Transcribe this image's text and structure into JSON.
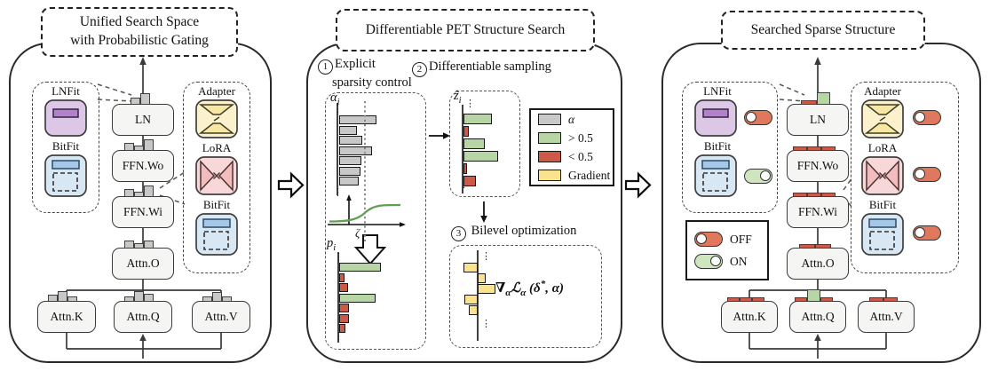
{
  "colors": {
    "panel_border": "#2b2b2b",
    "block_fill": "#f5f5f3",
    "gate_gray": "#c8c8c8",
    "gray_bar": "#c8c8c8",
    "green_bar": "#b8d6a5",
    "red_bar": "#cd5948",
    "yellow_bar": "#fbe38e",
    "sigmoid_green": "#5fa050",
    "lnfit_bg": "#dcc8e6",
    "lnfit_bar": "#b083c8",
    "bitfit_bg": "#d8e7f4",
    "bitfit_bar": "#a6c7e7",
    "adapter_bg": "#fbf2cd",
    "adapter_shape": "#f7e7a3",
    "lora_bg": "#f7d7d7",
    "lora_shape": "#f3bdbd",
    "toggle_off": "#e0785e",
    "toggle_on": "#cfe5bd"
  },
  "glyphs": {
    "vdots": "⋮"
  },
  "left_panel": {
    "title_line1": "Unified Search Space",
    "title_line2": "with Probabilistic Gating"
  },
  "middle_panel": {
    "title": "Differentiable PET Structure Search",
    "steps": [
      {
        "num": "1",
        "line1": "Explicit",
        "line2": "sparsity control"
      },
      {
        "num": "2",
        "line1": "Differentiable sampling"
      },
      {
        "num": "3",
        "line1": "Bilevel optimization"
      }
    ],
    "zeta": "ζ",
    "legend": [
      {
        "label": "α",
        "color_key": "gray_bar"
      },
      {
        "label": "> 0.5",
        "color_key": "green_bar"
      },
      {
        "label": "< 0.5",
        "color_key": "red_bar"
      },
      {
        "label": "Gradient",
        "color_key": "yellow_bar"
      }
    ],
    "formula_parts": [
      {
        "t": "∇"
      },
      {
        "t": "α",
        "sub": true
      },
      {
        "t": "ℒ"
      },
      {
        "t": "α",
        "sub": true
      },
      {
        "t": " (δ"
      },
      {
        "t": "*",
        "sup": true
      },
      {
        "t": ", α)"
      }
    ]
  },
  "right_panel": {
    "title": "Searched Sparse Structure",
    "legend_off": "OFF",
    "legend_on": "ON",
    "toggles": {
      "lnfit": "off",
      "bitfit_left": "on",
      "adapter": "off",
      "lora": "off",
      "bitfit_right": "off"
    }
  },
  "arch": {
    "blocks": [
      "LN",
      "FFN.Wo",
      "FFN.Wi",
      "Attn.O"
    ],
    "attn": [
      "Attn.K",
      "Attn.Q",
      "Attn.V"
    ],
    "modules_left": [
      {
        "label": "LNFit",
        "type": "lnfit"
      },
      {
        "label": "BitFit",
        "type": "bitfit"
      }
    ],
    "modules_right": [
      {
        "label": "Adapter",
        "type": "adapter"
      },
      {
        "label": "LoRA",
        "type": "lora"
      },
      {
        "label": "BitFit",
        "type": "bitfit"
      }
    ]
  },
  "gates": {
    "left": {
      "ln": [
        {
          "h": 8
        },
        {
          "h": 13
        }
      ],
      "ffn_wo": [
        {
          "h": 9
        },
        {
          "h": 6
        },
        {
          "h": 13
        }
      ],
      "ffn_wi": [
        {
          "h": 9
        },
        {
          "h": 6
        },
        {
          "h": 13
        }
      ],
      "attn_o": [
        {
          "h": 9
        },
        {
          "h": 6
        },
        {
          "h": 9
        }
      ],
      "attn_k": [
        {
          "h": 8
        },
        {
          "h": 12
        },
        {
          "h": 6
        }
      ],
      "attn_q": [
        {
          "h": 6
        },
        {
          "h": 12
        },
        {
          "h": 9
        }
      ],
      "attn_v": [
        {
          "h": 6
        },
        {
          "h": 11
        },
        {
          "h": 6
        }
      ]
    },
    "right": {
      "ln": [
        {
          "h": 5,
          "w": 18,
          "c": "red"
        },
        {
          "h": 14,
          "w": 15,
          "c": "green"
        }
      ],
      "ffn_wo": [
        {
          "h": 5,
          "w": 16,
          "c": "red"
        },
        {
          "h": 5,
          "w": 16,
          "c": "red"
        },
        {
          "h": 5,
          "w": 16,
          "c": "red"
        }
      ],
      "ffn_wi": [
        {
          "h": 5,
          "w": 16,
          "c": "red"
        },
        {
          "h": 5,
          "w": 16,
          "c": "red"
        },
        {
          "h": 5,
          "w": 16,
          "c": "red"
        }
      ],
      "attn_o": [
        {
          "h": 5,
          "w": 18,
          "c": "red"
        },
        {
          "h": 5,
          "w": 18,
          "c": "red"
        }
      ],
      "attn_k": [
        {
          "h": 5,
          "w": 14,
          "c": "red"
        },
        {
          "h": 5,
          "w": 14,
          "c": "red"
        },
        {
          "h": 5,
          "w": 14,
          "c": "red"
        }
      ],
      "attn_q": [
        {
          "h": 5,
          "w": 14,
          "c": "red"
        },
        {
          "h": 14,
          "w": 15,
          "c": "green"
        },
        {
          "h": 5,
          "w": 14,
          "c": "red"
        }
      ],
      "attn_v": [
        {
          "h": 5,
          "w": 16,
          "c": "red"
        },
        {
          "h": 5,
          "w": 16,
          "c": "red"
        }
      ]
    }
  },
  "histograms": {
    "alpha": {
      "label_base": "α",
      "label_sub": "i",
      "bars": [
        {
          "v": 42,
          "c": "gray"
        },
        {
          "v": 20,
          "c": "gray"
        },
        {
          "v": 26,
          "c": "gray"
        },
        {
          "v": 37,
          "c": "gray"
        },
        {
          "v": 25,
          "c": "gray"
        },
        {
          "v": 24,
          "c": "gray"
        },
        {
          "v": 22,
          "c": "gray"
        }
      ]
    },
    "z": {
      "label_base": "ẑ",
      "label_sub": "i",
      "bars": [
        {
          "v": 32,
          "c": "green"
        },
        {
          "v": 6,
          "c": "red"
        },
        {
          "v": 24,
          "c": "green"
        },
        {
          "v": 39,
          "c": "green"
        },
        {
          "v": 4,
          "c": "red"
        },
        {
          "v": 14,
          "c": "red"
        }
      ]
    },
    "p": {
      "label_base": "p",
      "label_sub": "i",
      "bars": [
        {
          "v": 47,
          "c": "green"
        },
        {
          "v": 6,
          "c": "red"
        },
        {
          "v": 10,
          "c": "red"
        },
        {
          "v": 41,
          "c": "green"
        },
        {
          "v": 11,
          "c": "red"
        },
        {
          "v": 11,
          "c": "red"
        },
        {
          "v": 7,
          "c": "red"
        }
      ]
    },
    "gradient": {
      "bars": [
        {
          "v": -16,
          "c": "yellow"
        },
        {
          "v": 9,
          "c": "yellow"
        },
        {
          "v": 20,
          "c": "yellow"
        },
        {
          "v": -15,
          "c": "yellow"
        },
        {
          "v": -10,
          "c": "yellow"
        }
      ]
    }
  }
}
